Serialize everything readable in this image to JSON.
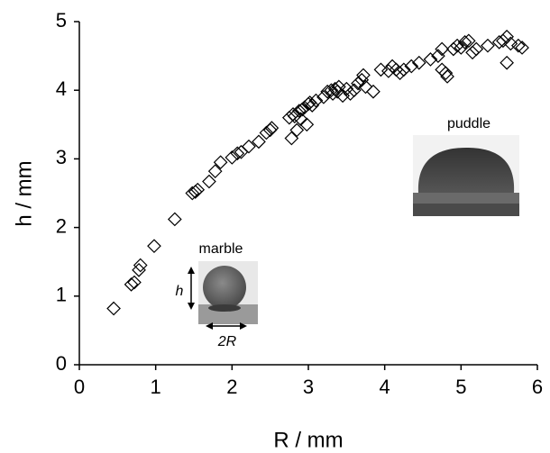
{
  "chart_data": {
    "type": "scatter",
    "xlabel": "R / mm",
    "ylabel": "h / mm",
    "annotations": [
      "marble",
      "puddle",
      "h",
      "2R"
    ],
    "color": "#000000",
    "marker": "diamond",
    "grid": false,
    "xlim": [
      0,
      6
    ],
    "xticks": [
      0,
      1,
      2,
      3,
      4,
      5,
      6
    ],
    "ylim": [
      0,
      5
    ],
    "yticks": [
      0,
      1,
      2,
      3,
      4,
      5
    ],
    "x": [
      0.45,
      0.68,
      0.72,
      0.78,
      0.8,
      0.98,
      1.25,
      1.48,
      1.52,
      1.55,
      1.7,
      1.78,
      1.85,
      2.0,
      2.07,
      2.12,
      2.22,
      2.35,
      2.45,
      2.5,
      2.52,
      2.75,
      2.78,
      2.8,
      2.82,
      2.85,
      2.88,
      2.9,
      2.92,
      2.95,
      2.98,
      3.0,
      3.02,
      3.05,
      3.1,
      3.2,
      3.25,
      3.3,
      3.32,
      3.35,
      3.38,
      3.4,
      3.45,
      3.5,
      3.55,
      3.6,
      3.65,
      3.7,
      3.72,
      3.75,
      3.85,
      3.95,
      4.05,
      4.1,
      4.15,
      4.2,
      4.25,
      4.35,
      4.45,
      4.6,
      4.7,
      4.75,
      4.75,
      4.8,
      4.82,
      4.9,
      4.95,
      5.0,
      5.05,
      5.1,
      5.15,
      5.2,
      5.35,
      5.5,
      5.55,
      5.6,
      5.6,
      5.65,
      5.75,
      5.8
    ],
    "values": [
      0.82,
      1.17,
      1.2,
      1.38,
      1.45,
      1.73,
      2.12,
      2.5,
      2.52,
      2.55,
      2.67,
      2.82,
      2.95,
      3.02,
      3.08,
      3.1,
      3.18,
      3.25,
      3.38,
      3.42,
      3.45,
      3.6,
      3.3,
      3.65,
      3.62,
      3.42,
      3.7,
      3.58,
      3.72,
      3.75,
      3.5,
      3.8,
      3.82,
      3.78,
      3.85,
      3.9,
      3.98,
      4.0,
      3.95,
      4.02,
      3.98,
      4.05,
      3.92,
      4.02,
      3.95,
      4.0,
      4.1,
      4.15,
      4.22,
      4.05,
      3.98,
      4.3,
      4.28,
      4.35,
      4.3,
      4.25,
      4.3,
      4.35,
      4.4,
      4.45,
      4.5,
      4.6,
      4.3,
      4.25,
      4.2,
      4.6,
      4.65,
      4.62,
      4.7,
      4.72,
      4.55,
      4.6,
      4.65,
      4.7,
      4.72,
      4.78,
      4.4,
      4.68,
      4.65,
      4.62
    ]
  }
}
